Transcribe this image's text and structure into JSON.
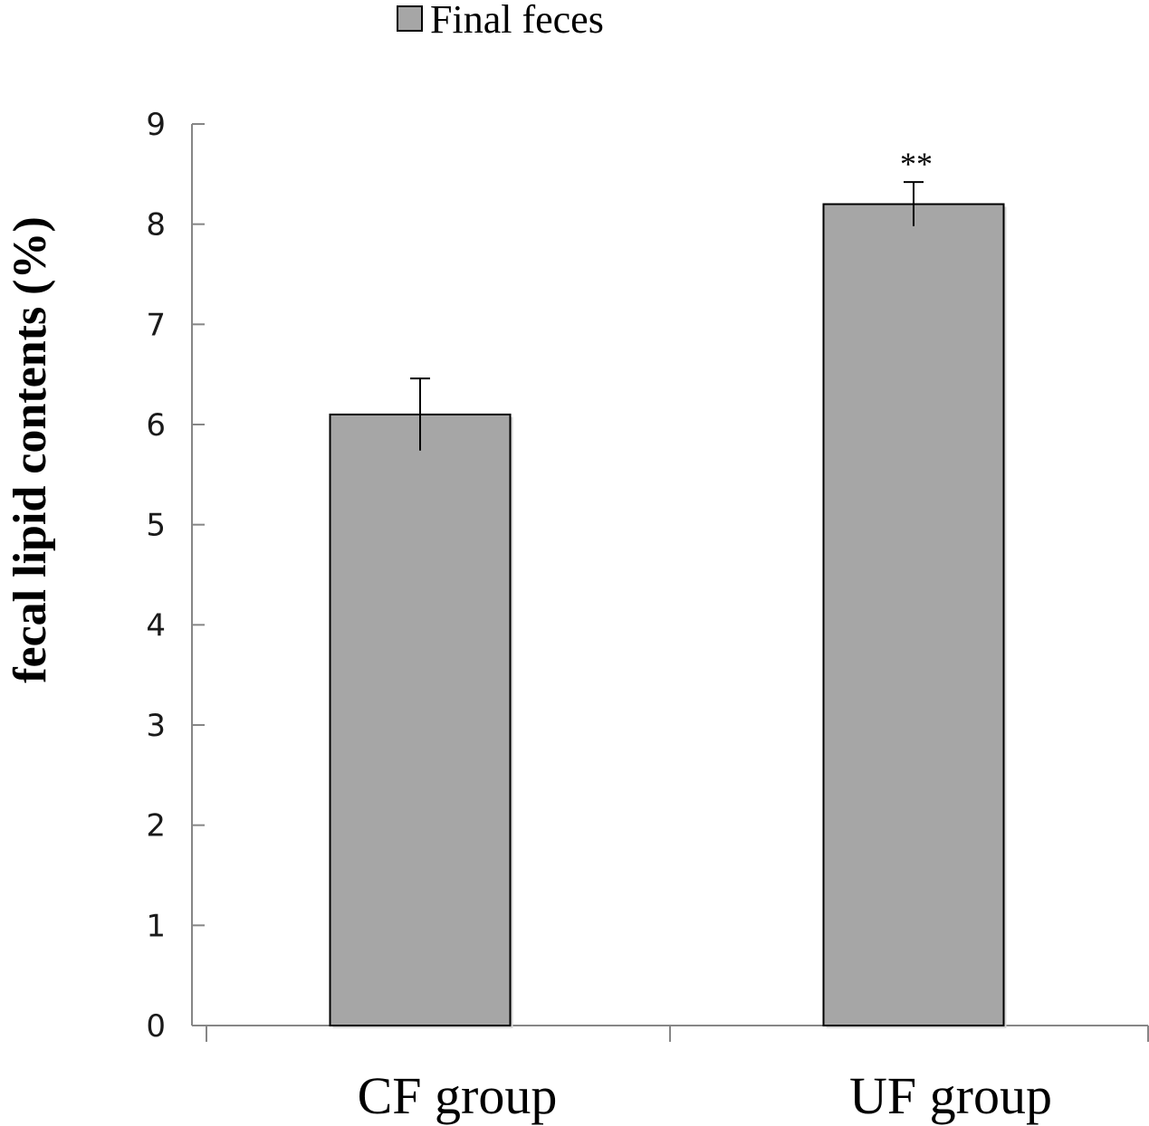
{
  "chart_data": {
    "type": "bar",
    "categories": [
      "CF group",
      "UF group"
    ],
    "series": [
      {
        "name": "Final feces",
        "values": [
          6.1,
          8.2
        ],
        "errors": [
          0.36,
          0.22
        ],
        "color": "#a6a6a6"
      }
    ],
    "annotations": [
      "",
      "**"
    ],
    "ylabel": "fecal lipid contents  (%)",
    "xlabel": "",
    "ylim": [
      0,
      9
    ],
    "yticks": [
      0,
      1,
      2,
      3,
      4,
      5,
      6,
      7,
      8,
      9
    ],
    "grid": false,
    "legend": "top-center"
  }
}
